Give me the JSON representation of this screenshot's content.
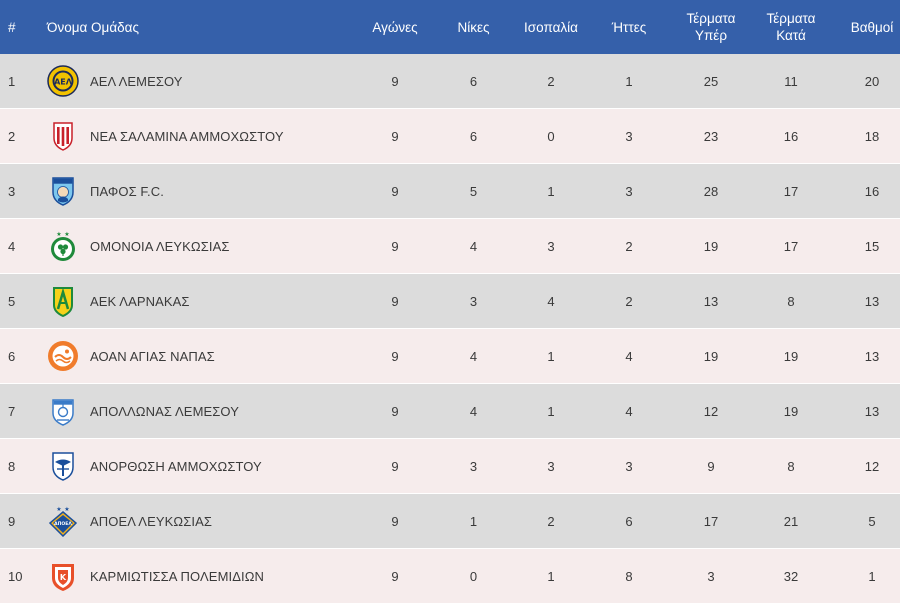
{
  "header": {
    "position": "#",
    "team": "Όνομα Ομάδας",
    "played": "Αγώνες",
    "wins": "Νίκες",
    "draws": "Ισοπαλία",
    "losses": "Ήττες",
    "goals_for": "Τέρματα\nΥπέρ",
    "goals_against": "Τέρματα\nΚατά",
    "points": "Βαθμοί"
  },
  "rows": [
    {
      "position": "1",
      "team": "ΑΕΛ ΛΕΜΕΣΟΥ",
      "crest": "ael-crest-icon",
      "played": "9",
      "wins": "6",
      "draws": "2",
      "losses": "1",
      "goals_for": "25",
      "goals_against": "11",
      "points": "20"
    },
    {
      "position": "2",
      "team": "ΝΕΑ ΣΑΛΑΜΙΝΑ ΑΜΜΟΧΩΣΤΟΥ",
      "crest": "nea-salamina-crest-icon",
      "played": "9",
      "wins": "6",
      "draws": "0",
      "losses": "3",
      "goals_for": "23",
      "goals_against": "16",
      "points": "18"
    },
    {
      "position": "3",
      "team": "ΠΑΦΟΣ F.C.",
      "crest": "pafos-crest-icon",
      "played": "9",
      "wins": "5",
      "draws": "1",
      "losses": "3",
      "goals_for": "28",
      "goals_against": "17",
      "points": "16"
    },
    {
      "position": "4",
      "team": "ΟΜΟΝΟΙΑ ΛΕΥΚΩΣΙΑΣ",
      "crest": "omonoia-crest-icon",
      "played": "9",
      "wins": "4",
      "draws": "3",
      "losses": "2",
      "goals_for": "19",
      "goals_against": "17",
      "points": "15"
    },
    {
      "position": "5",
      "team": "ΑΕΚ ΛΑΡΝΑΚΑΣ",
      "crest": "aek-crest-icon",
      "played": "9",
      "wins": "3",
      "draws": "4",
      "losses": "2",
      "goals_for": "13",
      "goals_against": "8",
      "points": "13"
    },
    {
      "position": "6",
      "team": "ΑΟΑΝ ΑΓΙΑΣ ΝΑΠΑΣ",
      "crest": "aoan-crest-icon",
      "played": "9",
      "wins": "4",
      "draws": "1",
      "losses": "4",
      "goals_for": "19",
      "goals_against": "19",
      "points": "13"
    },
    {
      "position": "7",
      "team": "ΑΠΟΛΛΩΝΑΣ ΛΕΜΕΣΟΥ",
      "crest": "apollon-crest-icon",
      "played": "9",
      "wins": "4",
      "draws": "1",
      "losses": "4",
      "goals_for": "12",
      "goals_against": "19",
      "points": "13"
    },
    {
      "position": "8",
      "team": "ΑΝΟΡΘΩΣΗ ΑΜΜΟΧΩΣΤΟΥ",
      "crest": "anorthosis-crest-icon",
      "played": "9",
      "wins": "3",
      "draws": "3",
      "losses": "3",
      "goals_for": "9",
      "goals_against": "8",
      "points": "12"
    },
    {
      "position": "9",
      "team": "ΑΠΟΕΛ ΛΕΥΚΩΣΙΑΣ",
      "crest": "apoel-crest-icon",
      "played": "9",
      "wins": "1",
      "draws": "2",
      "losses": "6",
      "goals_for": "17",
      "goals_against": "21",
      "points": "5"
    },
    {
      "position": "10",
      "team": "ΚΑΡΜΙΩΤΙΣΣΑ ΠΟΛΕΜΙΔΙΩΝ",
      "crest": "karmiotissa-crest-icon",
      "played": "9",
      "wins": "0",
      "draws": "1",
      "losses": "8",
      "goals_for": "3",
      "goals_against": "32",
      "points": "1"
    }
  ],
  "colors": {
    "header_bg": "#3560aa",
    "row_odd": "#dcdcdc",
    "row_even": "#f6ecec"
  }
}
